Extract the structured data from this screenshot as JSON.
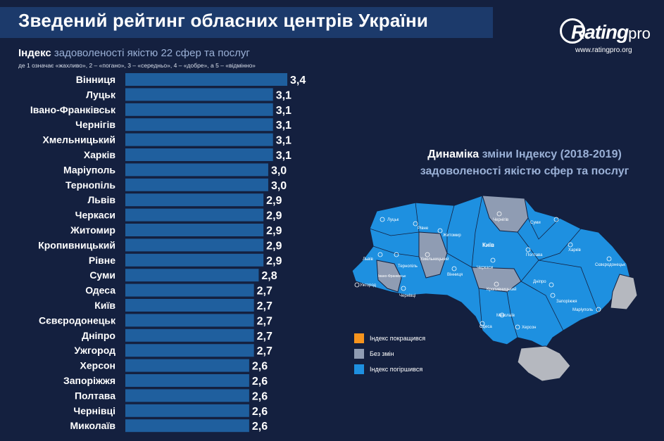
{
  "header": {
    "title": "Зведений рейтинг обласних центрів України"
  },
  "logo": {
    "brand_main": "Rating",
    "brand_pro": "pro",
    "url": "www.ratingpro.org"
  },
  "chart_subtitle": {
    "lead": "Індекс",
    "rest": " задоволеності якістю 22 сфер та послуг"
  },
  "scale_note": "де 1 означає «жахливо», 2 – «погано», 3 – «середньо», 4 – «добре», а 5 – «відмінно»",
  "chart_data": [
    {
      "type": "bar",
      "orientation": "horizontal",
      "categories": [
        "Вінниця",
        "Луцьк",
        "Івано-Франківськ",
        "Чернігів",
        "Хмельницький",
        "Харків",
        "Маріуполь",
        "Тернопіль",
        "Львів",
        "Черкаси",
        "Житомир",
        "Кропивницький",
        "Рівне",
        "Суми",
        "Одеса",
        "Київ",
        "Сєвєродонецьк",
        "Дніпро",
        "Ужгород",
        "Херсон",
        "Запоріжжя",
        "Полтава",
        "Чернівці",
        "Миколаїв"
      ],
      "values": [
        3.4,
        3.1,
        3.1,
        3.1,
        3.1,
        3.1,
        3.0,
        3.0,
        2.9,
        2.9,
        2.9,
        2.9,
        2.9,
        2.8,
        2.7,
        2.7,
        2.7,
        2.7,
        2.7,
        2.6,
        2.6,
        2.6,
        2.6,
        2.6
      ],
      "labels": [
        "3,4",
        "3,1",
        "3,1",
        "3,1",
        "3,1",
        "3,1",
        "3,0",
        "3,0",
        "2,9",
        "2,9",
        "2,9",
        "2,9",
        "2,9",
        "2,8",
        "2,7",
        "2,7",
        "2,7",
        "2,7",
        "2,7",
        "2,6",
        "2,6",
        "2,6",
        "2,6",
        "2,6"
      ],
      "bar_color": "#1f5f9e",
      "title": "Індекс задоволеності якістю 22 сфер та послуг"
    }
  ],
  "map": {
    "title_lead": "Динаміка",
    "title_rest": " зміни Індексу (2018-2019)",
    "title_line2": "задоволеності якістю сфер та послуг",
    "regions": [
      {
        "label": "Луцьк",
        "status": "declined"
      },
      {
        "label": "Рівне",
        "status": "declined"
      },
      {
        "label": "Житомир",
        "status": "declined"
      },
      {
        "label": "Чернігів",
        "status": "no_change"
      },
      {
        "label": "Суми",
        "status": "declined"
      },
      {
        "label": "Київ",
        "status": "declined"
      },
      {
        "label": "Львів",
        "status": "declined"
      },
      {
        "label": "Тернопіль",
        "status": "declined"
      },
      {
        "label": "Хмельницький",
        "status": "no_change"
      },
      {
        "label": "Вінниця",
        "status": "declined"
      },
      {
        "label": "Черкаси",
        "status": "declined"
      },
      {
        "label": "Полтава",
        "status": "declined"
      },
      {
        "label": "Харків",
        "status": "declined"
      },
      {
        "label": "Сєвєродонецьк",
        "status": "declined"
      },
      {
        "label": "Ужгород",
        "status": "declined"
      },
      {
        "label": "Івано-Франківськ",
        "status": "no_change"
      },
      {
        "label": "Чернівці",
        "status": "declined"
      },
      {
        "label": "Кропивницький",
        "status": "no_change"
      },
      {
        "label": "Дніпро",
        "status": "declined"
      },
      {
        "label": "Запоріжжя",
        "status": "declined"
      },
      {
        "label": "Маріуполь",
        "status": "declined"
      },
      {
        "label": "Одеса",
        "status": "declined"
      },
      {
        "label": "Миколаїв",
        "status": "declined"
      },
      {
        "label": "Херсон",
        "status": "declined"
      }
    ]
  },
  "legend": {
    "items": [
      {
        "label": "Індекс покращився",
        "color": "#f7941d"
      },
      {
        "label": "Без змін",
        "color": "#8f9cb3"
      },
      {
        "label": "Індекс погіршився",
        "color": "#1e90e0"
      }
    ]
  },
  "colors": {
    "background": "#14203f",
    "title_band": "#1c3a6b",
    "map_declined": "#1e90e0",
    "map_no_change": "#8f9cb3",
    "map_occupied": "#b5b8bf"
  }
}
